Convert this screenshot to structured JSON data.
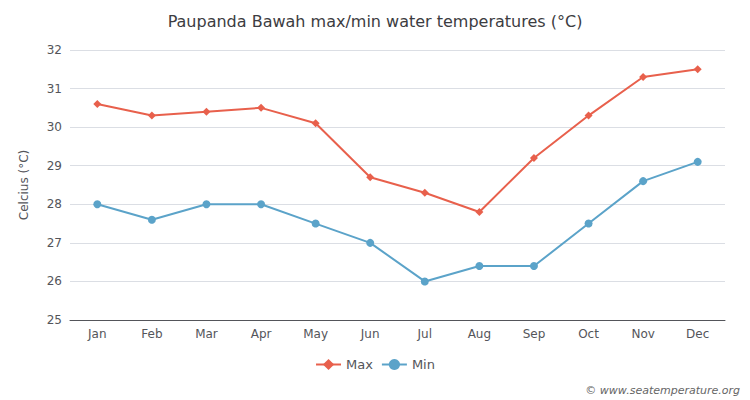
{
  "chart_data": {
    "type": "line",
    "title": "Paupanda Bawah max/min water temperatures (°C)",
    "ylabel": "Celcius (°C)",
    "categories": [
      "Jan",
      "Feb",
      "Mar",
      "Apr",
      "May",
      "Jun",
      "Jul",
      "Aug",
      "Sep",
      "Oct",
      "Nov",
      "Dec"
    ],
    "series": [
      {
        "name": "Max",
        "color": "#e8604c",
        "marker": "diamond",
        "values": [
          30.6,
          30.3,
          30.4,
          30.5,
          30.1,
          28.7,
          28.3,
          27.8,
          29.2,
          30.3,
          31.3,
          31.5
        ]
      },
      {
        "name": "Min",
        "color": "#5ba3c9",
        "marker": "circle",
        "values": [
          28.0,
          27.6,
          28.0,
          28.0,
          27.5,
          27.0,
          26.0,
          26.4,
          26.4,
          27.5,
          28.6,
          29.1
        ]
      }
    ],
    "ylim": [
      25,
      32
    ],
    "yticks": [
      25,
      26,
      27,
      28,
      29,
      30,
      31,
      32
    ],
    "grid": true,
    "legend": "bottom",
    "annotations": [
      "© www.seatemperature.org"
    ]
  }
}
